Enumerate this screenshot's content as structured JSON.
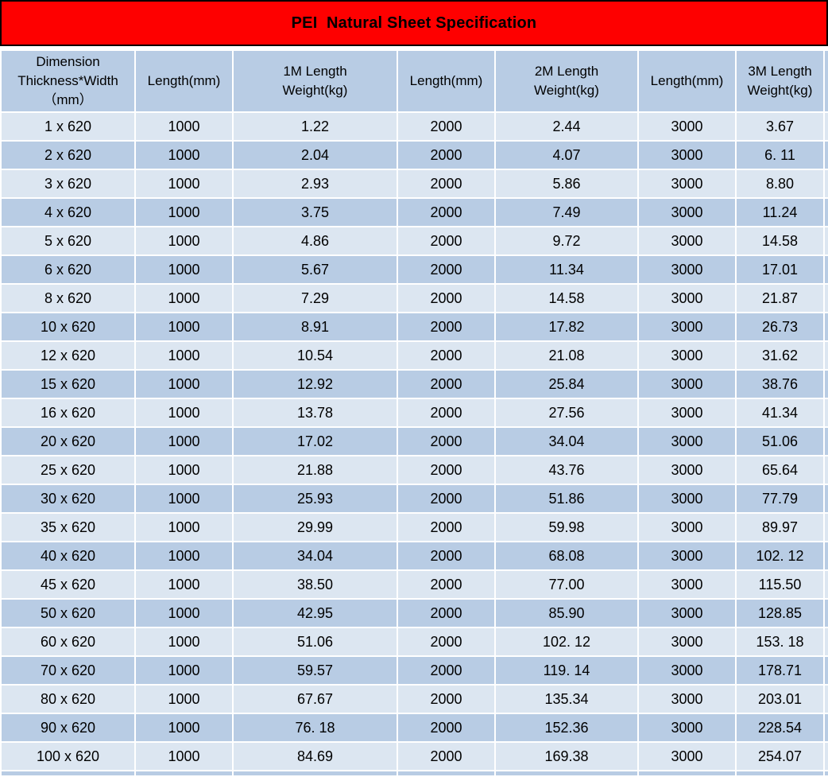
{
  "title": "PEI  Natural Sheet Specification",
  "colors": {
    "title_bg": "#fe0000",
    "title_border": "#000000",
    "row_light": "#dce6f1",
    "row_dark": "#b8cce4",
    "header_bg": "#b8cce4",
    "gridline": "#ffffff",
    "text": "#000000"
  },
  "table": {
    "columns": [
      "Dimension\nThickness*Width\n（mm）",
      "Length(mm)",
      "1M Length\nWeight(kg)",
      "Length(mm)",
      "2M Length\nWeight(kg)",
      "Length(mm)",
      "3M Length\nWeight(kg)"
    ],
    "rows": [
      [
        "1 x 620",
        "1000",
        "1.22",
        "2000",
        "2.44",
        "3000",
        "3.67"
      ],
      [
        "2 x 620",
        "1000",
        "2.04",
        "2000",
        "4.07",
        "3000",
        "6. 11"
      ],
      [
        "3 x 620",
        "1000",
        "2.93",
        "2000",
        "5.86",
        "3000",
        "8.80"
      ],
      [
        "4 x 620",
        "1000",
        "3.75",
        "2000",
        "7.49",
        "3000",
        "11.24"
      ],
      [
        "5 x 620",
        "1000",
        "4.86",
        "2000",
        "9.72",
        "3000",
        "14.58"
      ],
      [
        "6 x 620",
        "1000",
        "5.67",
        "2000",
        "11.34",
        "3000",
        "17.01"
      ],
      [
        "8 x 620",
        "1000",
        "7.29",
        "2000",
        "14.58",
        "3000",
        "21.87"
      ],
      [
        "10 x 620",
        "1000",
        "8.91",
        "2000",
        "17.82",
        "3000",
        "26.73"
      ],
      [
        "12 x 620",
        "1000",
        "10.54",
        "2000",
        "21.08",
        "3000",
        "31.62"
      ],
      [
        "15 x 620",
        "1000",
        "12.92",
        "2000",
        "25.84",
        "3000",
        "38.76"
      ],
      [
        "16 x 620",
        "1000",
        "13.78",
        "2000",
        "27.56",
        "3000",
        "41.34"
      ],
      [
        "20 x 620",
        "1000",
        "17.02",
        "2000",
        "34.04",
        "3000",
        "51.06"
      ],
      [
        "25 x 620",
        "1000",
        "21.88",
        "2000",
        "43.76",
        "3000",
        "65.64"
      ],
      [
        "30 x 620",
        "1000",
        "25.93",
        "2000",
        "51.86",
        "3000",
        "77.79"
      ],
      [
        "35 x 620",
        "1000",
        "29.99",
        "2000",
        "59.98",
        "3000",
        "89.97"
      ],
      [
        "40 x 620",
        "1000",
        "34.04",
        "2000",
        "68.08",
        "3000",
        "102. 12"
      ],
      [
        "45 x 620",
        "1000",
        "38.50",
        "2000",
        "77.00",
        "3000",
        "115.50"
      ],
      [
        "50 x 620",
        "1000",
        "42.95",
        "2000",
        "85.90",
        "3000",
        "128.85"
      ],
      [
        "60 x 620",
        "1000",
        "51.06",
        "2000",
        "102. 12",
        "3000",
        "153. 18"
      ],
      [
        "70 x 620",
        "1000",
        "59.57",
        "2000",
        "119. 14",
        "3000",
        "178.71"
      ],
      [
        "80 x 620",
        "1000",
        "67.67",
        "2000",
        "135.34",
        "3000",
        "203.01"
      ],
      [
        "90 x 620",
        "1000",
        "76. 18",
        "2000",
        "152.36",
        "3000",
        "228.54"
      ],
      [
        "100 x 620",
        "1000",
        "84.69",
        "2000",
        "169.38",
        "3000",
        "254.07"
      ]
    ]
  }
}
